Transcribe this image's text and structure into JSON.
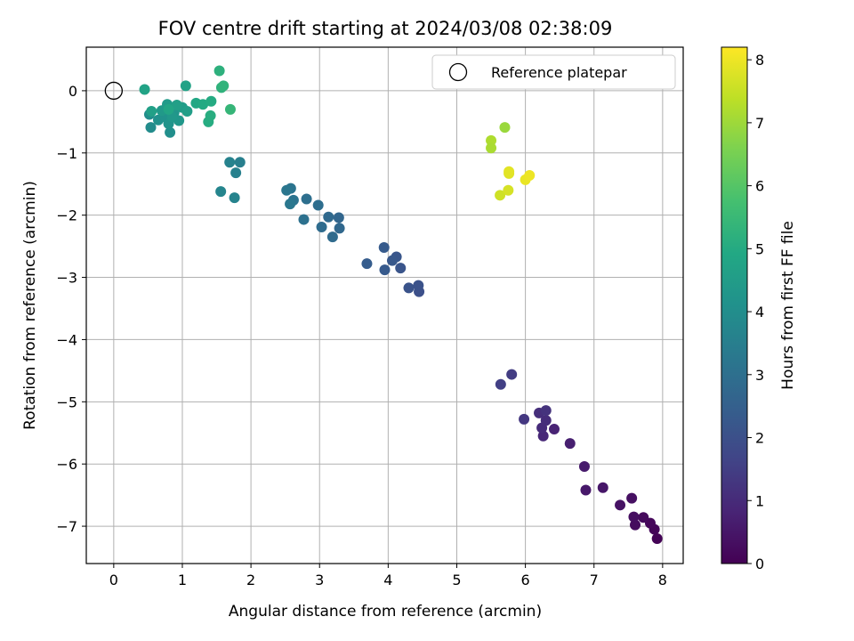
{
  "chart_data": {
    "type": "scatter",
    "title": "FOV centre drift starting at 2024/03/08 02:38:09",
    "xlabel": "Angular distance from reference (arcmin)",
    "ylabel": "Rotation from reference (arcmin)",
    "xlim": [
      -0.4,
      8.3
    ],
    "ylim": [
      -7.6,
      0.7
    ],
    "xticks": [
      0,
      1,
      2,
      3,
      4,
      5,
      6,
      7,
      8
    ],
    "yticks": [
      0,
      -1,
      -2,
      -3,
      -4,
      -5,
      -6,
      -7
    ],
    "grid": true,
    "legend": {
      "placement": "top-right",
      "label": "Reference platepar"
    },
    "reference": {
      "x": 0,
      "y": 0
    },
    "colorbar": {
      "label": "Hours from first FF file",
      "range": [
        0,
        8.2
      ],
      "ticks": [
        0,
        1,
        2,
        3,
        4,
        5,
        6,
        7,
        8
      ],
      "colormap": "viridis"
    },
    "points": [
      {
        "x": 7.92,
        "y": -7.2,
        "t": 0.05
      },
      {
        "x": 7.88,
        "y": -7.05,
        "t": 0.1
      },
      {
        "x": 7.82,
        "y": -6.95,
        "t": 0.15
      },
      {
        "x": 7.72,
        "y": -6.86,
        "t": 0.2
      },
      {
        "x": 7.6,
        "y": -6.98,
        "t": 0.25
      },
      {
        "x": 7.58,
        "y": -6.85,
        "t": 0.3
      },
      {
        "x": 7.55,
        "y": -6.55,
        "t": 0.35
      },
      {
        "x": 7.38,
        "y": -6.66,
        "t": 0.4
      },
      {
        "x": 7.13,
        "y": -6.38,
        "t": 0.5
      },
      {
        "x": 6.88,
        "y": -6.42,
        "t": 0.55
      },
      {
        "x": 6.86,
        "y": -6.04,
        "t": 0.6
      },
      {
        "x": 6.65,
        "y": -5.67,
        "t": 0.7
      },
      {
        "x": 6.42,
        "y": -5.44,
        "t": 0.8
      },
      {
        "x": 6.26,
        "y": -5.55,
        "t": 0.9
      },
      {
        "x": 6.24,
        "y": -5.42,
        "t": 1.0
      },
      {
        "x": 6.3,
        "y": -5.3,
        "t": 1.05
      },
      {
        "x": 6.2,
        "y": -5.18,
        "t": 1.1
      },
      {
        "x": 6.3,
        "y": -5.14,
        "t": 1.2
      },
      {
        "x": 5.98,
        "y": -5.28,
        "t": 1.3
      },
      {
        "x": 5.8,
        "y": -4.56,
        "t": 1.45
      },
      {
        "x": 5.64,
        "y": -4.72,
        "t": 1.55
      },
      {
        "x": 4.45,
        "y": -3.23,
        "t": 2.0
      },
      {
        "x": 4.44,
        "y": -3.13,
        "t": 2.05
      },
      {
        "x": 4.3,
        "y": -3.17,
        "t": 2.1
      },
      {
        "x": 4.18,
        "y": -2.85,
        "t": 2.15
      },
      {
        "x": 4.12,
        "y": -2.67,
        "t": 2.2
      },
      {
        "x": 4.06,
        "y": -2.73,
        "t": 2.25
      },
      {
        "x": 3.95,
        "y": -2.88,
        "t": 2.3
      },
      {
        "x": 3.94,
        "y": -2.52,
        "t": 2.35
      },
      {
        "x": 3.69,
        "y": -2.78,
        "t": 2.4
      },
      {
        "x": 3.28,
        "y": -2.04,
        "t": 2.7
      },
      {
        "x": 3.29,
        "y": -2.21,
        "t": 2.75
      },
      {
        "x": 3.13,
        "y": -2.03,
        "t": 2.8
      },
      {
        "x": 3.19,
        "y": -2.35,
        "t": 2.85
      },
      {
        "x": 3.03,
        "y": -2.19,
        "t": 2.9
      },
      {
        "x": 2.98,
        "y": -1.84,
        "t": 2.95
      },
      {
        "x": 2.81,
        "y": -1.74,
        "t": 3.0
      },
      {
        "x": 2.77,
        "y": -2.07,
        "t": 3.05
      },
      {
        "x": 2.62,
        "y": -1.76,
        "t": 3.1
      },
      {
        "x": 2.58,
        "y": -1.57,
        "t": 3.15
      },
      {
        "x": 2.52,
        "y": -1.6,
        "t": 3.2
      },
      {
        "x": 2.57,
        "y": -1.82,
        "t": 3.25
      },
      {
        "x": 1.84,
        "y": -1.15,
        "t": 3.5
      },
      {
        "x": 1.78,
        "y": -1.32,
        "t": 3.55
      },
      {
        "x": 1.69,
        "y": -1.15,
        "t": 3.6
      },
      {
        "x": 1.76,
        "y": -1.72,
        "t": 3.65
      },
      {
        "x": 1.56,
        "y": -1.62,
        "t": 3.7
      },
      {
        "x": 0.54,
        "y": -0.59,
        "t": 3.95
      },
      {
        "x": 0.52,
        "y": -0.38,
        "t": 4.0
      },
      {
        "x": 0.82,
        "y": -0.67,
        "t": 4.05
      },
      {
        "x": 0.65,
        "y": -0.47,
        "t": 4.1
      },
      {
        "x": 0.75,
        "y": -0.42,
        "t": 4.15
      },
      {
        "x": 0.8,
        "y": -0.53,
        "t": 4.2
      },
      {
        "x": 0.88,
        "y": -0.35,
        "t": 4.25
      },
      {
        "x": 0.95,
        "y": -0.48,
        "t": 4.3
      },
      {
        "x": 0.85,
        "y": -0.42,
        "t": 4.35
      },
      {
        "x": 0.7,
        "y": -0.32,
        "t": 4.4
      },
      {
        "x": 0.78,
        "y": -0.22,
        "t": 4.45
      },
      {
        "x": 1.0,
        "y": -0.27,
        "t": 4.5
      },
      {
        "x": 1.07,
        "y": -0.33,
        "t": 4.55
      },
      {
        "x": 0.92,
        "y": -0.23,
        "t": 4.6
      },
      {
        "x": 0.55,
        "y": -0.33,
        "t": 4.65
      },
      {
        "x": 1.05,
        "y": 0.08,
        "t": 4.7
      },
      {
        "x": 0.45,
        "y": 0.02,
        "t": 4.75
      },
      {
        "x": 0.8,
        "y": -0.3,
        "t": 4.8
      },
      {
        "x": 1.2,
        "y": -0.2,
        "t": 4.9
      },
      {
        "x": 1.3,
        "y": -0.22,
        "t": 4.95
      },
      {
        "x": 1.42,
        "y": -0.17,
        "t": 5.0
      },
      {
        "x": 1.38,
        "y": -0.5,
        "t": 5.05
      },
      {
        "x": 1.41,
        "y": -0.4,
        "t": 5.1
      },
      {
        "x": 1.54,
        "y": 0.32,
        "t": 5.2
      },
      {
        "x": 1.57,
        "y": 0.05,
        "t": 5.25
      },
      {
        "x": 1.6,
        "y": 0.08,
        "t": 5.3
      },
      {
        "x": 1.7,
        "y": -0.3,
        "t": 5.4
      },
      {
        "x": 5.63,
        "y": -1.68,
        "t": 7.6
      },
      {
        "x": 5.75,
        "y": -1.6,
        "t": 7.7
      },
      {
        "x": 5.76,
        "y": -1.33,
        "t": 7.8
      },
      {
        "x": 5.76,
        "y": -1.3,
        "t": 7.85
      },
      {
        "x": 6.0,
        "y": -1.43,
        "t": 7.95
      },
      {
        "x": 6.06,
        "y": -1.36,
        "t": 8.0
      },
      {
        "x": 5.5,
        "y": -0.8,
        "t": 7.2
      },
      {
        "x": 5.5,
        "y": -0.92,
        "t": 7.15
      },
      {
        "x": 5.7,
        "y": -0.59,
        "t": 6.95
      }
    ]
  }
}
